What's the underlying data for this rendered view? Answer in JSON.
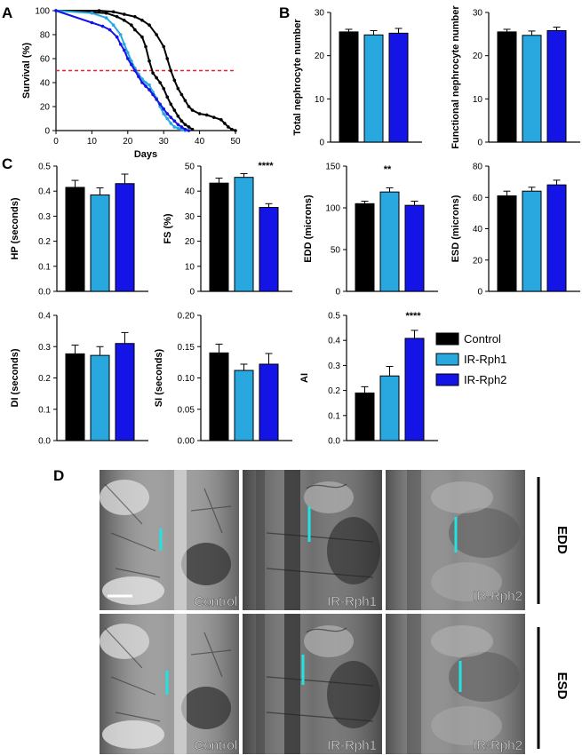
{
  "colors": {
    "control": "#000000",
    "ir1": "#29a8e0",
    "ir2": "#1414e6",
    "ref_line": "#e8202a",
    "marker": "#22e3e0"
  },
  "panel_labels": {
    "A": "A",
    "B": "B",
    "C": "C",
    "D": "D"
  },
  "significance": {
    "fs": "****",
    "edd": "**",
    "ai": "****"
  },
  "legend": {
    "control": "Control",
    "ir1": "IR-Rph1",
    "ir2": "IR-Rph2"
  },
  "images": {
    "row_labels": {
      "top": "EDD",
      "bottom": "ESD"
    },
    "captions": [
      "Control",
      "IR-Rph1",
      "IR-Rph2"
    ]
  },
  "chart_data": [
    {
      "id": "survival",
      "type": "line",
      "xlabel": "Days",
      "ylabel": "Survival (%)",
      "xlim": [
        0,
        50
      ],
      "ylim": [
        0,
        100
      ],
      "xticks": [
        0,
        10,
        20,
        30,
        40,
        50
      ],
      "yticks": [
        0,
        20,
        40,
        60,
        80,
        100
      ],
      "reference_line_y": 50,
      "series": [
        {
          "key": "control_a",
          "color": "#000000",
          "points": [
            [
              0,
              100
            ],
            [
              12,
              100
            ],
            [
              16,
              99
            ],
            [
              19,
              97
            ],
            [
              22,
              95
            ],
            [
              24,
              92
            ],
            [
              26,
              88
            ],
            [
              28,
              80
            ],
            [
              30,
              70
            ],
            [
              31,
              60
            ],
            [
              32,
              50
            ],
            [
              33,
              42
            ],
            [
              34,
              35
            ],
            [
              35,
              30
            ],
            [
              36,
              25
            ],
            [
              37,
              20
            ],
            [
              38,
              17
            ],
            [
              40,
              14
            ],
            [
              42,
              13
            ],
            [
              44,
              11
            ],
            [
              46,
              9
            ],
            [
              47,
              6
            ],
            [
              48,
              3
            ],
            [
              49,
              1
            ],
            [
              50,
              0
            ]
          ]
        },
        {
          "key": "control_b",
          "color": "#000000",
          "points": [
            [
              0,
              100
            ],
            [
              14,
              98
            ],
            [
              17,
              95
            ],
            [
              19,
              92
            ],
            [
              21,
              88
            ],
            [
              22,
              84
            ],
            [
              24,
              78
            ],
            [
              25,
              70
            ],
            [
              26,
              58
            ],
            [
              27,
              48
            ],
            [
              28,
              44
            ],
            [
              29,
              40
            ],
            [
              30,
              35
            ],
            [
              31,
              28
            ],
            [
              32,
              22
            ],
            [
              33,
              17
            ],
            [
              34,
              12
            ],
            [
              35,
              8
            ],
            [
              36,
              5
            ],
            [
              37,
              3
            ],
            [
              38,
              1
            ]
          ]
        },
        {
          "key": "ir1",
          "color": "#29a8e0",
          "points": [
            [
              0,
              100
            ],
            [
              10,
              98
            ],
            [
              14,
              94
            ],
            [
              16,
              88
            ],
            [
              18,
              80
            ],
            [
              19,
              72
            ],
            [
              20,
              65
            ],
            [
              21,
              58
            ],
            [
              22,
              52
            ],
            [
              23,
              47
            ],
            [
              24,
              43
            ],
            [
              25,
              40
            ],
            [
              26,
              38
            ],
            [
              27,
              32
            ],
            [
              28,
              27
            ],
            [
              29,
              20
            ],
            [
              30,
              14
            ],
            [
              31,
              10
            ],
            [
              32,
              6
            ],
            [
              33,
              3
            ],
            [
              34,
              2
            ],
            [
              35,
              1
            ],
            [
              36,
              0
            ]
          ]
        },
        {
          "key": "ir2",
          "color": "#1414e6",
          "points": [
            [
              0,
              100
            ],
            [
              10,
              90
            ],
            [
              13,
              87
            ],
            [
              15,
              84
            ],
            [
              17,
              78
            ],
            [
              18,
              72
            ],
            [
              19,
              67
            ],
            [
              20,
              60
            ],
            [
              21,
              55
            ],
            [
              22,
              50
            ],
            [
              23,
              45
            ],
            [
              24,
              40
            ],
            [
              25,
              37
            ],
            [
              26,
              34
            ],
            [
              27,
              30
            ],
            [
              28,
              26
            ],
            [
              29,
              22
            ],
            [
              30,
              18
            ],
            [
              31,
              14
            ],
            [
              32,
              11
            ],
            [
              33,
              8
            ],
            [
              34,
              5
            ],
            [
              35,
              3
            ],
            [
              36,
              1
            ],
            [
              37,
              0
            ]
          ]
        }
      ]
    },
    {
      "id": "total_nephro",
      "type": "bar",
      "ylabel": "Total nephrocyte number",
      "ylim": [
        0,
        30
      ],
      "yticks": [
        0,
        10,
        20,
        30
      ],
      "values": [
        25.5,
        24.8,
        25.2
      ],
      "errors": [
        0.6,
        1.0,
        1.1
      ]
    },
    {
      "id": "func_nephro",
      "type": "bar",
      "ylabel": "Functional nephrocyte number",
      "ylim": [
        0,
        30
      ],
      "yticks": [
        0,
        10,
        20,
        30
      ],
      "values": [
        25.5,
        24.7,
        25.8
      ],
      "errors": [
        0.6,
        1.0,
        0.8
      ]
    },
    {
      "id": "hp",
      "type": "bar",
      "ylabel": "HP (seconds)",
      "ylim": [
        0,
        0.5
      ],
      "yticks": [
        0.0,
        0.1,
        0.2,
        0.3,
        0.4,
        0.5
      ],
      "tick_labels": [
        "0.0",
        "0.1",
        "0.2",
        "0.3",
        "0.4",
        "0.5"
      ],
      "values": [
        0.415,
        0.385,
        0.43
      ],
      "errors": [
        0.028,
        0.028,
        0.038
      ]
    },
    {
      "id": "fs",
      "type": "bar",
      "ylabel": "FS (%)",
      "ylim": [
        0,
        50
      ],
      "yticks": [
        0,
        10,
        20,
        30,
        40,
        50
      ],
      "values": [
        43.2,
        45.5,
        33.5
      ],
      "errors": [
        2.0,
        1.5,
        1.5
      ]
    },
    {
      "id": "edd",
      "type": "bar",
      "ylabel": "EDD (microns)",
      "ylim": [
        0,
        150
      ],
      "yticks": [
        0,
        50,
        100,
        150
      ],
      "values": [
        105,
        119,
        103
      ],
      "errors": [
        3,
        5,
        5
      ]
    },
    {
      "id": "esd",
      "type": "bar",
      "ylabel": "ESD (microns)",
      "ylim": [
        0,
        80
      ],
      "yticks": [
        0,
        20,
        40,
        60,
        80
      ],
      "values": [
        61,
        64,
        68
      ],
      "errors": [
        3,
        2.5,
        3
      ]
    },
    {
      "id": "di",
      "type": "bar",
      "ylabel": "DI (seconds)",
      "ylim": [
        0,
        0.4
      ],
      "yticks": [
        0.0,
        0.1,
        0.2,
        0.3,
        0.4
      ],
      "tick_labels": [
        "0.0",
        "0.1",
        "0.2",
        "0.3",
        "0.4"
      ],
      "values": [
        0.277,
        0.272,
        0.31
      ],
      "errors": [
        0.028,
        0.028,
        0.035
      ]
    },
    {
      "id": "si",
      "type": "bar",
      "ylabel": "SI (seconds)",
      "ylim": [
        0,
        0.2
      ],
      "yticks": [
        0.0,
        0.05,
        0.1,
        0.15,
        0.2
      ],
      "tick_labels": [
        "0.00",
        "0.05",
        "0.10",
        "0.15",
        "0.20"
      ],
      "values": [
        0.14,
        0.112,
        0.122
      ],
      "errors": [
        0.014,
        0.01,
        0.017
      ]
    },
    {
      "id": "ai",
      "type": "bar",
      "ylabel": "AI",
      "ylim": [
        0,
        0.5
      ],
      "yticks": [
        0.0,
        0.1,
        0.2,
        0.3,
        0.4,
        0.5
      ],
      "tick_labels": [
        "0.0",
        "0.1",
        "0.2",
        "0.3",
        "0.4",
        "0.5"
      ],
      "values": [
        0.19,
        0.258,
        0.408
      ],
      "errors": [
        0.025,
        0.038,
        0.032
      ]
    }
  ]
}
